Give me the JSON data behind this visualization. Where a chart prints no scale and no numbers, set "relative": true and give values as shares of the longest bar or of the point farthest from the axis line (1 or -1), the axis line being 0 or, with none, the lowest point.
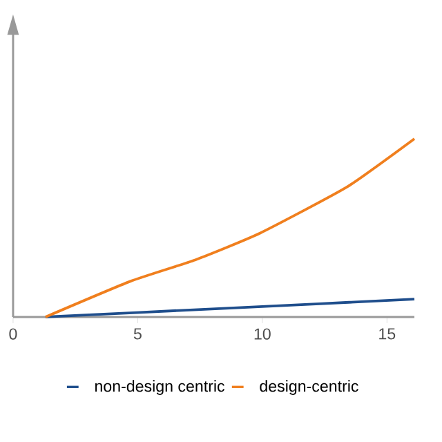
{
  "chart_data": {
    "type": "line",
    "relative": true,
    "xlim": [
      0,
      16.1
    ],
    "xticks": [
      0,
      5,
      10,
      15
    ],
    "legend": "bottom",
    "marker": "none",
    "line_style": "solid",
    "series": [
      {
        "name": "non-design centric",
        "color": "#1f4e8c",
        "x": [
          1.3,
          8.7,
          16.1
        ],
        "values": [
          0,
          0.05,
          0.1
        ]
      },
      {
        "name": "design-centric",
        "color": "#f07f1e",
        "x": [
          1.3,
          4.7,
          7.3,
          9.9,
          13.4,
          16.1
        ],
        "values": [
          0,
          0.2,
          0.32,
          0.47,
          0.73,
          1.0
        ]
      }
    ]
  }
}
